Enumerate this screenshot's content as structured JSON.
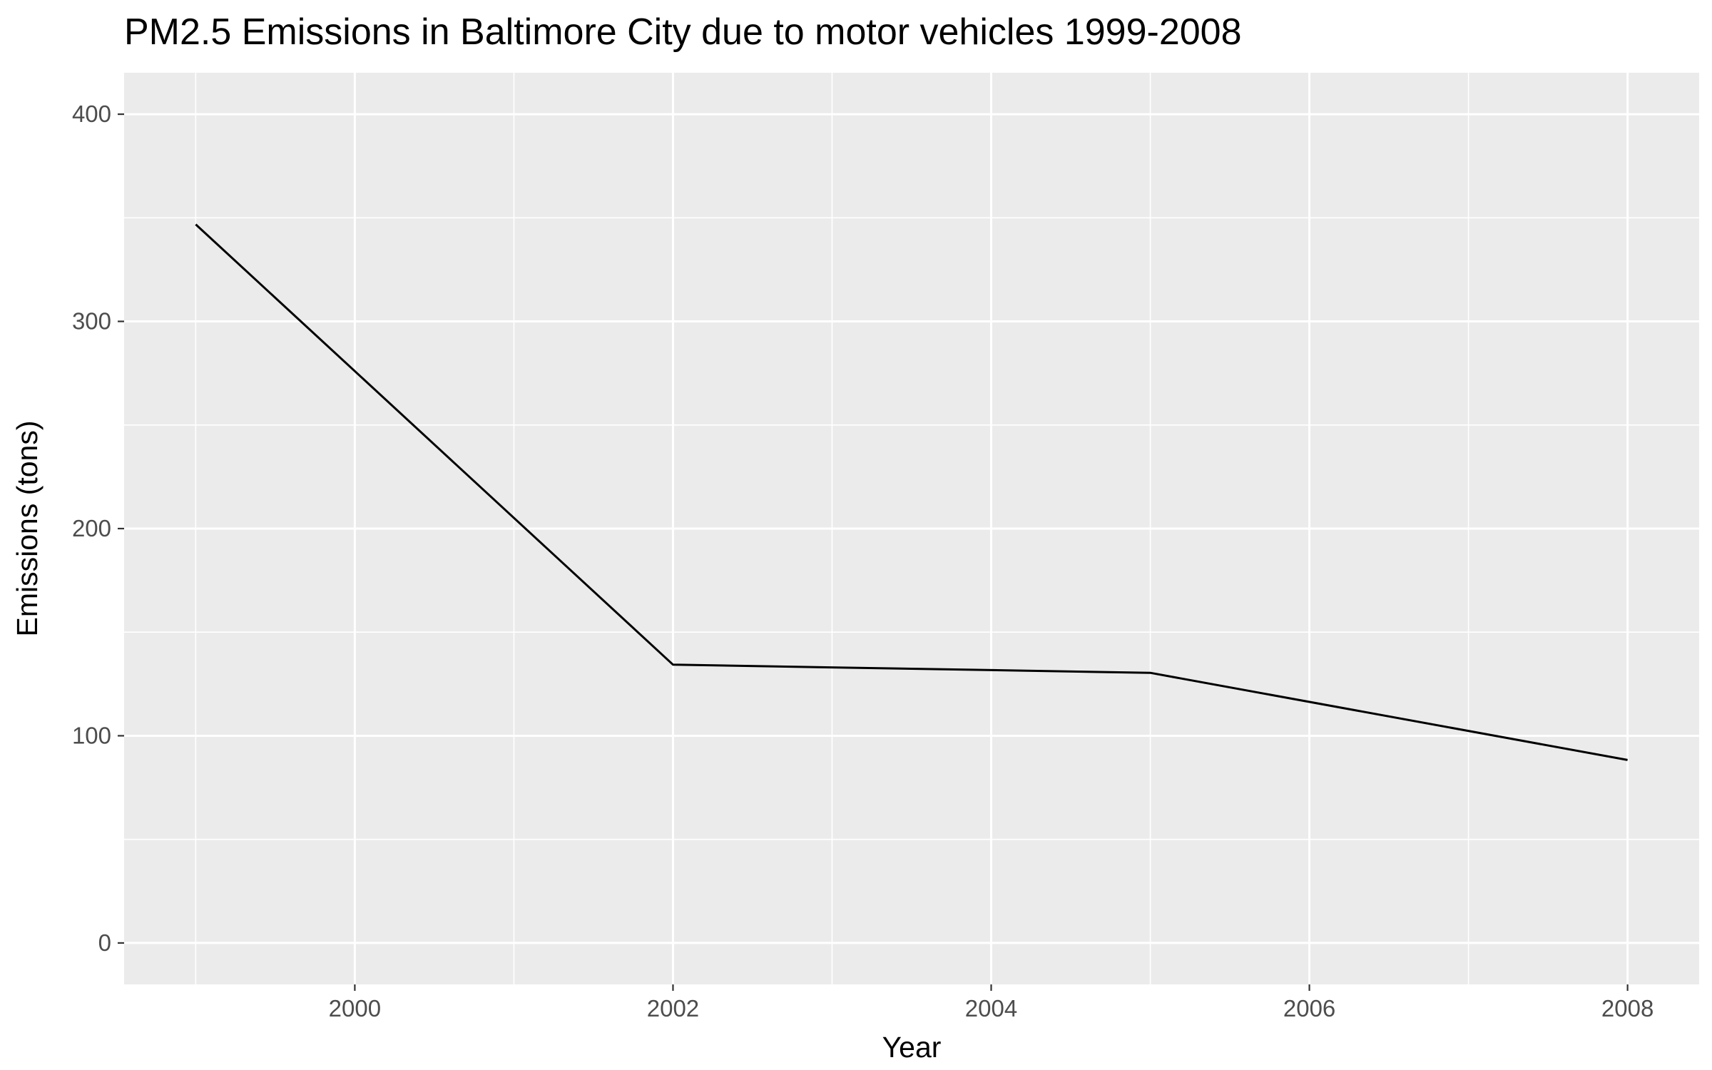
{
  "chart_data": {
    "type": "line",
    "title": "PM2.5 Emissions in Baltimore City due to motor vehicles 1999-2008",
    "xlabel": "Year",
    "ylabel": "Emissions (tons)",
    "x": [
      1999,
      2002,
      2005,
      2008
    ],
    "series": [
      {
        "values": [
          346.8,
          134.3,
          130.4,
          88.3
        ]
      }
    ],
    "xlim": [
      1998.55,
      2008.45
    ],
    "ylim": [
      -20,
      420
    ],
    "x_ticks": [
      2000,
      2002,
      2004,
      2006,
      2008
    ],
    "x_tick_labels": [
      "2000",
      "2002",
      "2004",
      "2006",
      "2008"
    ],
    "y_ticks": [
      0,
      100,
      200,
      300,
      400
    ],
    "y_tick_labels": [
      "0",
      "100",
      "200",
      "300",
      "400"
    ],
    "grid": true,
    "legend": "none",
    "colors": {
      "panel_background": "#ebebeb",
      "grid_line": "#ffffff",
      "series_line": "#000000",
      "tick_mark": "#333333",
      "tick_label": "#4d4d4d",
      "text": "#000000"
    }
  }
}
